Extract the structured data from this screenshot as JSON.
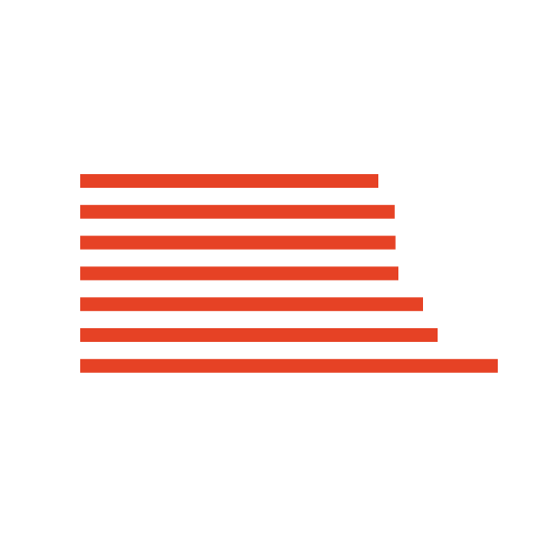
{
  "chart_data": {
    "type": "bar",
    "orientation": "horizontal",
    "title": "",
    "xlabel": "",
    "ylabel": "",
    "grid": false,
    "legend": "none",
    "axes_visible": false,
    "bar_color": "#e64225",
    "background_color": "#ffffff",
    "xlim": [
      0,
      100
    ],
    "series": [
      {
        "values": [
          71.4,
          75.3,
          75.5,
          76.2,
          82.1,
          85.6,
          100
        ]
      }
    ]
  }
}
